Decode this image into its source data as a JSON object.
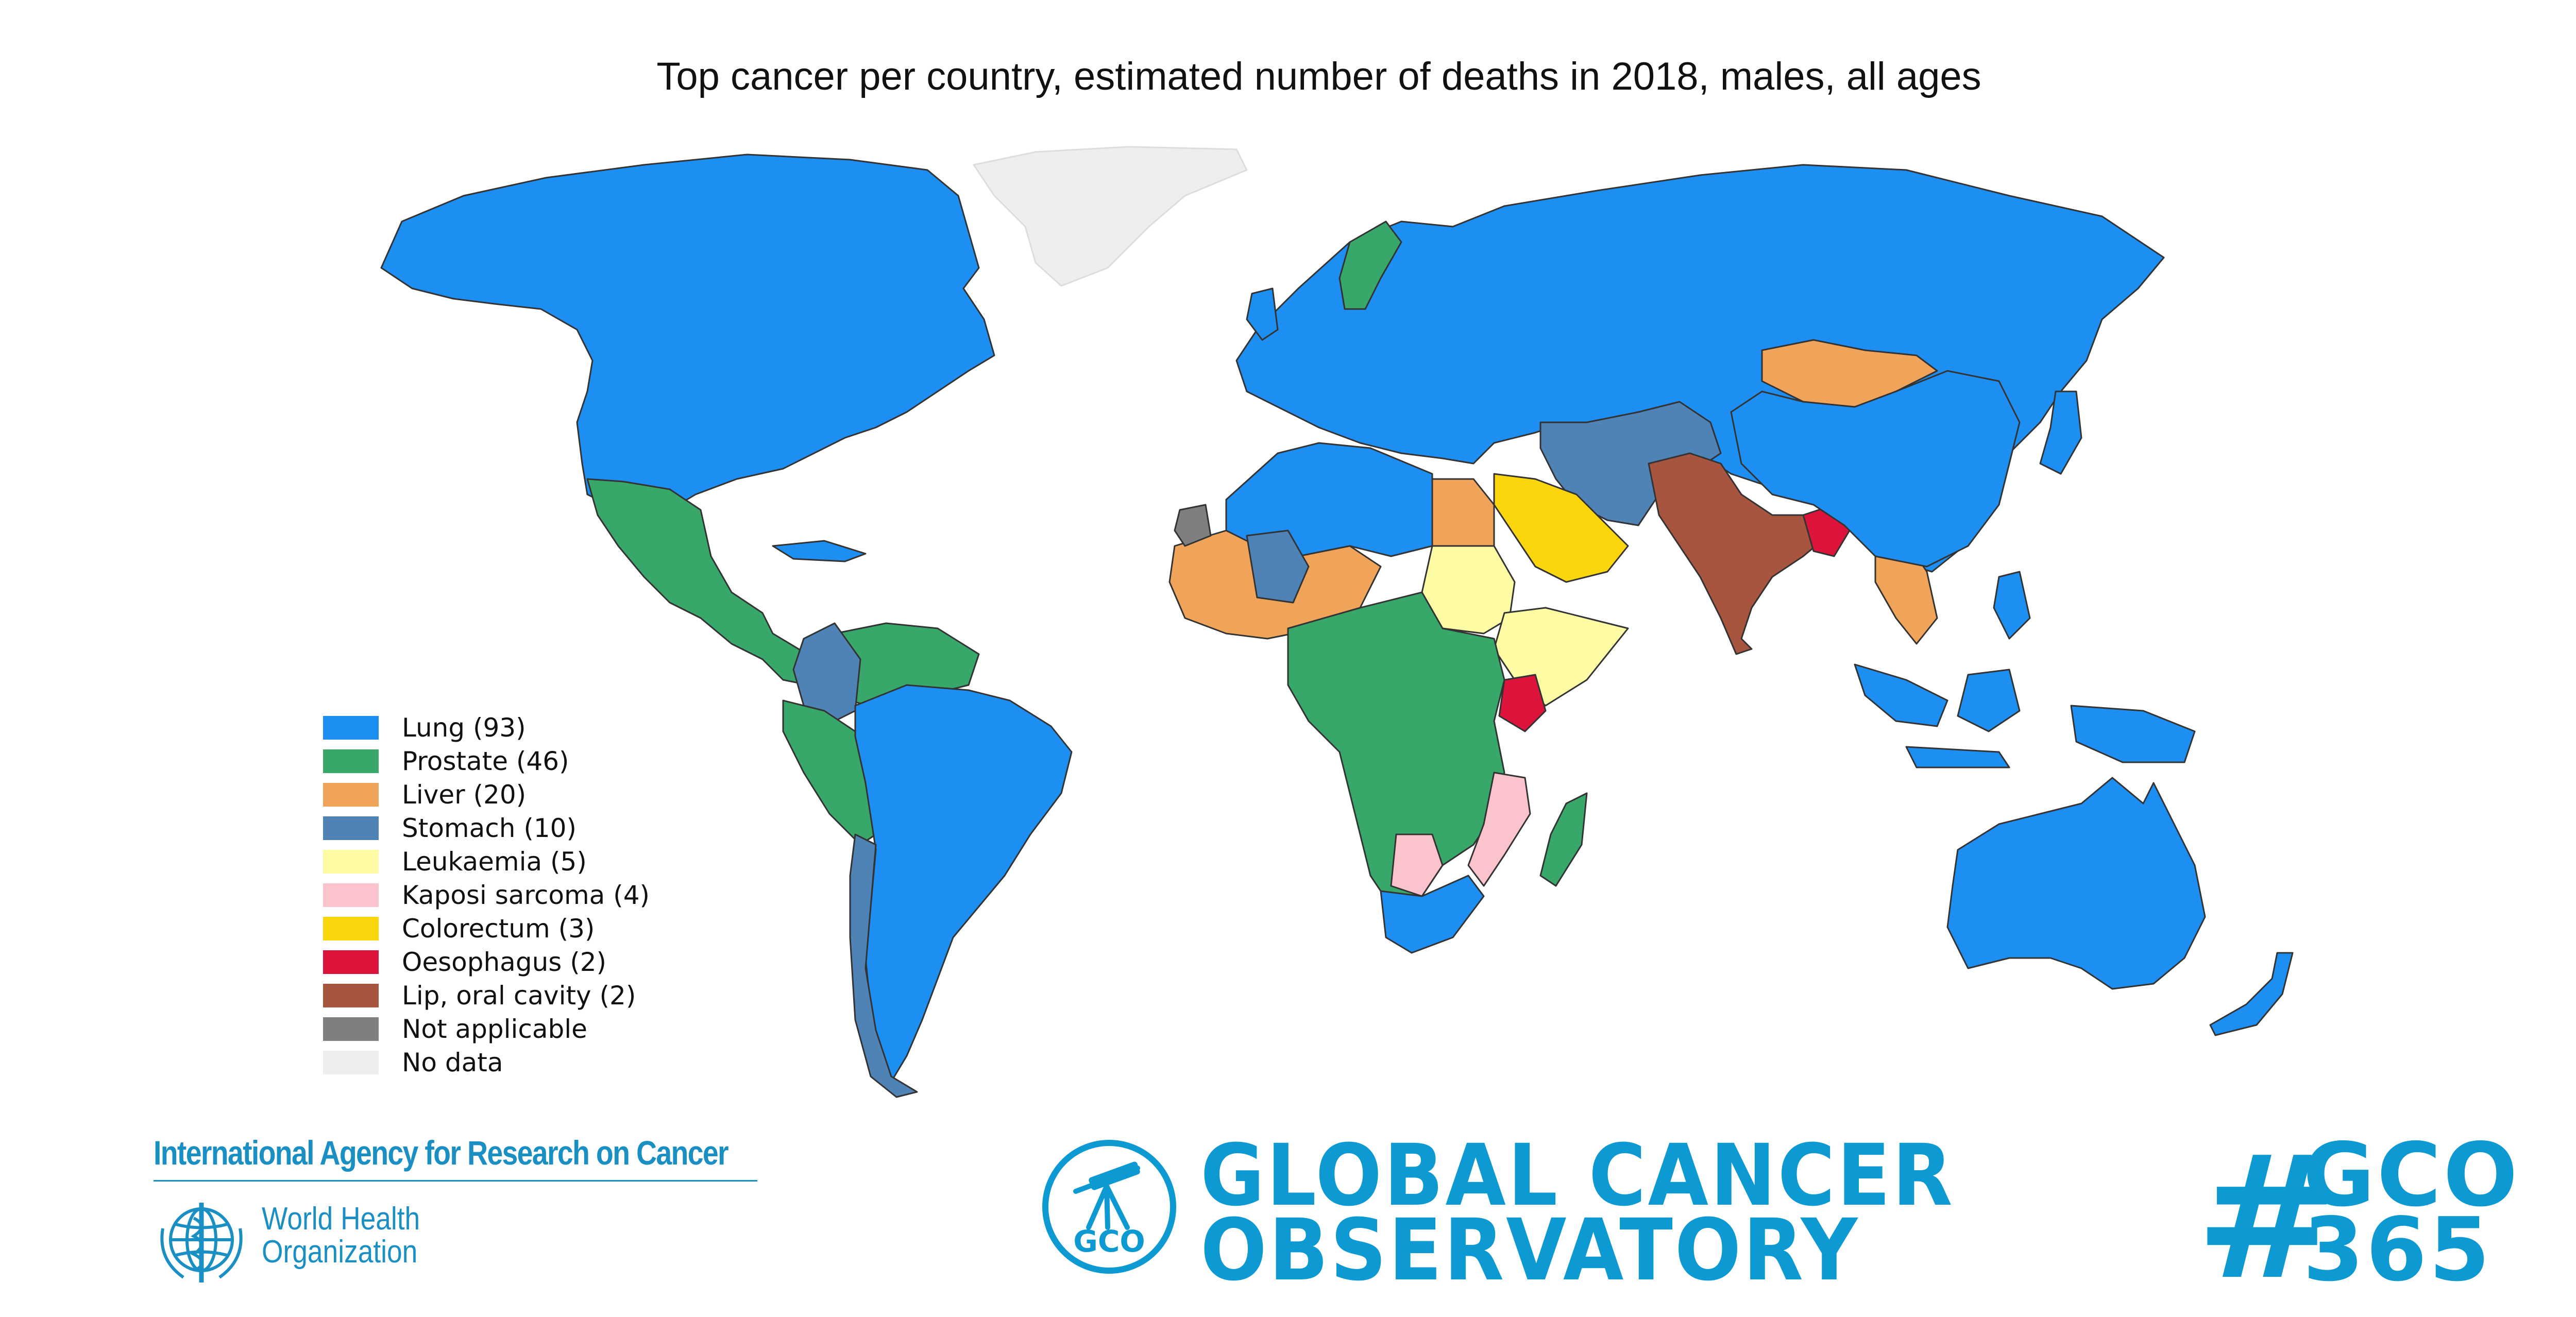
{
  "title": "Top cancer per country, estimated number of deaths in 2018, males, all ages",
  "legend": [
    {
      "label": "Lung (93)",
      "color": "#1e8ff2"
    },
    {
      "label": "Prostate (46)",
      "color": "#38a86a"
    },
    {
      "label": "Liver (20)",
      "color": "#f0a45a"
    },
    {
      "label": "Stomach (10)",
      "color": "#4f82b5"
    },
    {
      "label": "Leukaemia (5)",
      "color": "#fdfca4"
    },
    {
      "label": "Kaposi sarcoma (4)",
      "color": "#fbc3cb"
    },
    {
      "label": "Colorectum (3)",
      "color": "#fcd60c"
    },
    {
      "label": "Oesophagus (2)",
      "color": "#dc143c"
    },
    {
      "label": "Lip, oral cavity (2)",
      "color": "#a85540"
    },
    {
      "label": "Not applicable",
      "color": "#7f7f7f"
    },
    {
      "label": "No data",
      "color": "#eeeeee"
    }
  ],
  "logos": {
    "iarc": "International Agency for Research on Cancer",
    "who_line1": "World Health",
    "who_line2": "Organization",
    "gco_badge": "GCO",
    "gco_line1": "GLOBAL CANCER",
    "gco_line2": "OBSERVATORY",
    "hashtag": "#",
    "tag_line1": "GCO",
    "tag_line2": "365"
  }
}
